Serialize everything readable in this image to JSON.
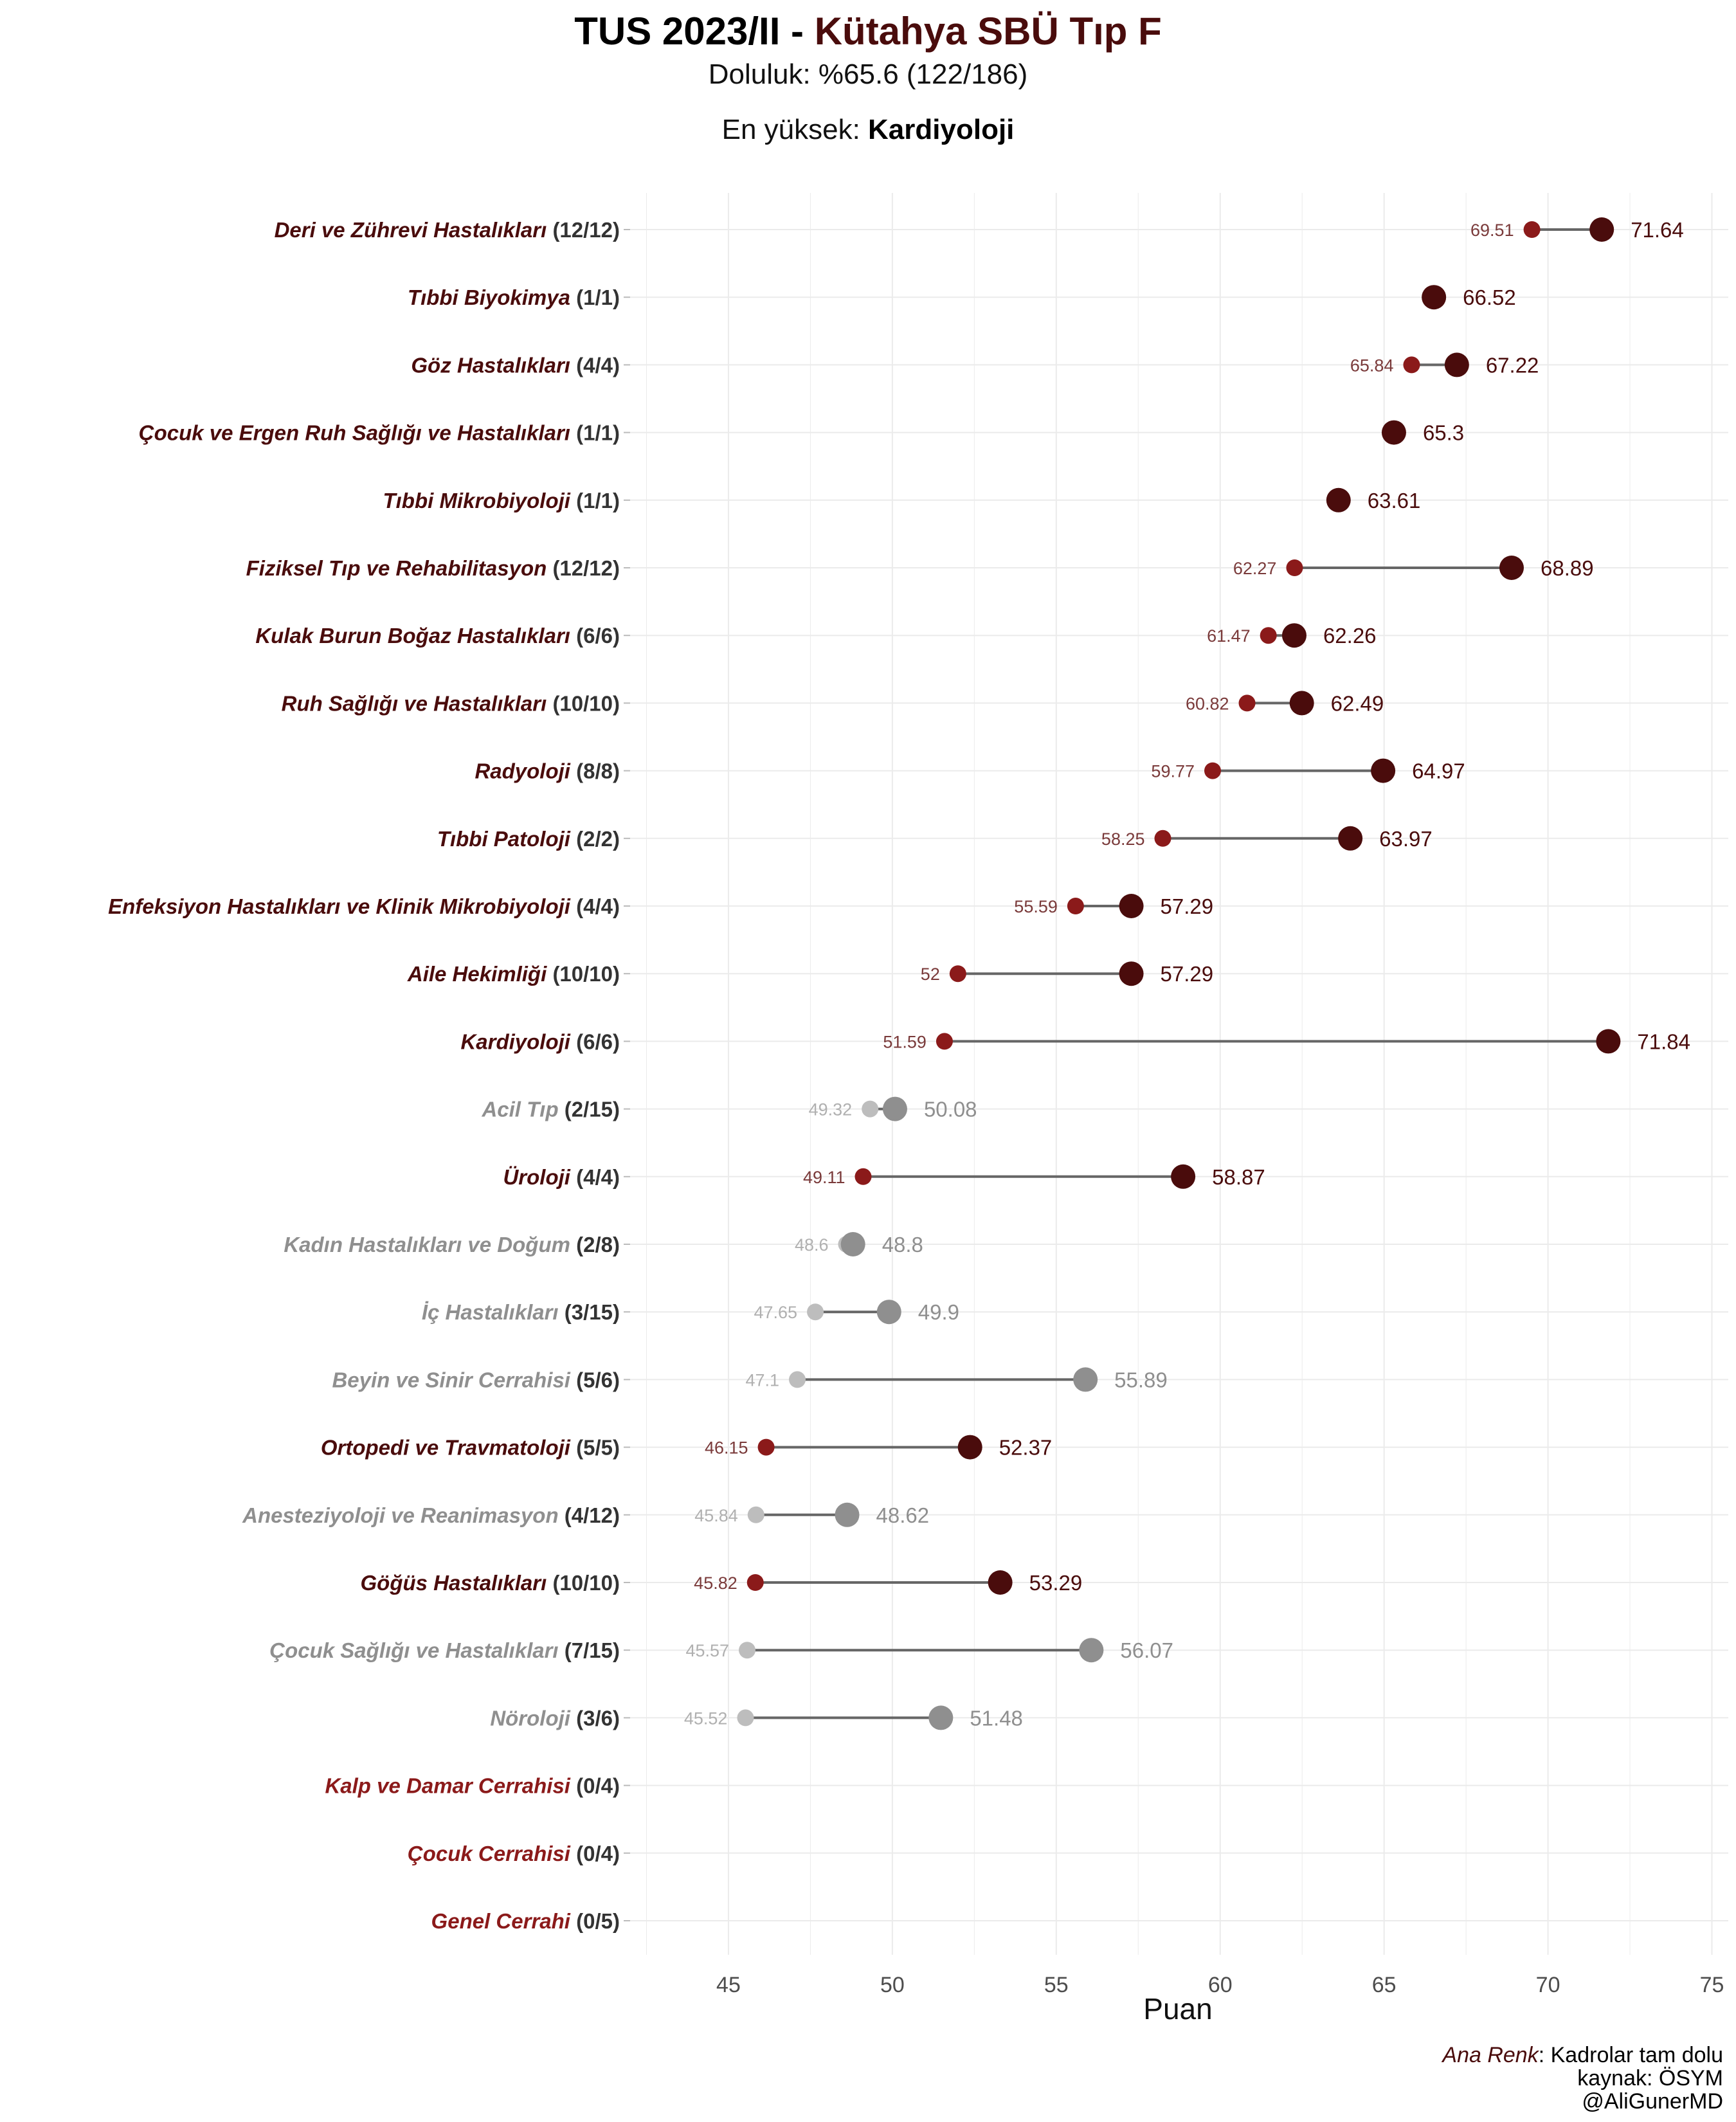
{
  "title": {
    "prefix": "TUS 2023/II - ",
    "accent": "Kütahya SBÜ Tıp F"
  },
  "subtitle": "Doluluk: %65.6 (122/186)",
  "highlight": {
    "label": "En yüksek: ",
    "value": "Kardiyoloji"
  },
  "caption": {
    "legend_key": "Ana Renk",
    "legend_text": ": Kadrolar tam dolu",
    "source": "kaynak: ÖSYM",
    "author": "@AliGunerMD"
  },
  "colors": {
    "full_name": "#4a0c0c",
    "full_max": "#4a0c0c",
    "full_min": "#8b1a1a",
    "partial_name": "#8f8f8f",
    "partial_max": "#8f8f8f",
    "partial_min": "#bdbdbd",
    "empty_name": "#8b1a1a",
    "count_text": "#333333",
    "segment": "#666666",
    "grid": "#ebebeb",
    "axis_text": "#4d4d4d"
  },
  "chart_data": {
    "type": "dumbbell",
    "xlabel": "Puan",
    "xlim": [
      42,
      75.5
    ],
    "xticks": [
      45,
      50,
      55,
      60,
      65,
      70,
      75
    ],
    "rows": [
      {
        "name": "Deri ve Zührevi Hastalıkları",
        "count": "(12/12)",
        "status": "full",
        "min": 69.51,
        "max": 71.64
      },
      {
        "name": "Tıbbi Biyokimya",
        "count": "(1/1)",
        "status": "full",
        "min": null,
        "max": 66.52
      },
      {
        "name": "Göz Hastalıkları",
        "count": "(4/4)",
        "status": "full",
        "min": 65.84,
        "max": 67.22
      },
      {
        "name": "Çocuk ve Ergen Ruh Sağlığı ve Hastalıkları",
        "count": "(1/1)",
        "status": "full",
        "min": null,
        "max": 65.3
      },
      {
        "name": "Tıbbi Mikrobiyoloji",
        "count": "(1/1)",
        "status": "full",
        "min": null,
        "max": 63.61
      },
      {
        "name": "Fiziksel Tıp ve Rehabilitasyon",
        "count": "(12/12)",
        "status": "full",
        "min": 62.27,
        "max": 68.89
      },
      {
        "name": "Kulak Burun Boğaz Hastalıkları",
        "count": "(6/6)",
        "status": "full",
        "min": 61.47,
        "max": 62.26
      },
      {
        "name": "Ruh Sağlığı ve Hastalıkları",
        "count": "(10/10)",
        "status": "full",
        "min": 60.82,
        "max": 62.49
      },
      {
        "name": "Radyoloji",
        "count": "(8/8)",
        "status": "full",
        "min": 59.77,
        "max": 64.97
      },
      {
        "name": "Tıbbi Patoloji",
        "count": "(2/2)",
        "status": "full",
        "min": 58.25,
        "max": 63.97
      },
      {
        "name": "Enfeksiyon Hastalıkları ve Klinik Mikrobiyoloji",
        "count": "(4/4)",
        "status": "full",
        "min": 55.59,
        "max": 57.29
      },
      {
        "name": "Aile Hekimliği",
        "count": "(10/10)",
        "status": "full",
        "min": 52,
        "max": 57.29
      },
      {
        "name": "Kardiyoloji",
        "count": "(6/6)",
        "status": "full",
        "min": 51.59,
        "max": 71.84
      },
      {
        "name": "Acil Tıp",
        "count": "(2/15)",
        "status": "partial",
        "min": 49.32,
        "max": 50.08
      },
      {
        "name": "Üroloji",
        "count": "(4/4)",
        "status": "full",
        "min": 49.11,
        "max": 58.87
      },
      {
        "name": "Kadın Hastalıkları ve Doğum",
        "count": "(2/8)",
        "status": "partial",
        "min": 48.6,
        "max": 48.8
      },
      {
        "name": "İç Hastalıkları",
        "count": "(3/15)",
        "status": "partial",
        "min": 47.65,
        "max": 49.9
      },
      {
        "name": "Beyin ve Sinir Cerrahisi",
        "count": "(5/6)",
        "status": "partial",
        "min": 47.1,
        "max": 55.89
      },
      {
        "name": "Ortopedi ve Travmatoloji",
        "count": "(5/5)",
        "status": "full",
        "min": 46.15,
        "max": 52.37
      },
      {
        "name": "Anesteziyoloji ve Reanimasyon",
        "count": "(4/12)",
        "status": "partial",
        "min": 45.84,
        "max": 48.62
      },
      {
        "name": "Göğüs Hastalıkları",
        "count": "(10/10)",
        "status": "full",
        "min": 45.82,
        "max": 53.29
      },
      {
        "name": "Çocuk Sağlığı ve Hastalıkları",
        "count": "(7/15)",
        "status": "partial",
        "min": 45.57,
        "max": 56.07
      },
      {
        "name": "Nöroloji",
        "count": "(3/6)",
        "status": "partial",
        "min": 45.52,
        "max": 51.48
      },
      {
        "name": "Kalp ve Damar Cerrahisi",
        "count": "(0/4)",
        "status": "empty",
        "min": null,
        "max": null
      },
      {
        "name": "Çocuk Cerrahisi",
        "count": "(0/4)",
        "status": "empty",
        "min": null,
        "max": null
      },
      {
        "name": "Genel Cerrahi",
        "count": "(0/5)",
        "status": "empty",
        "min": null,
        "max": null
      }
    ]
  }
}
